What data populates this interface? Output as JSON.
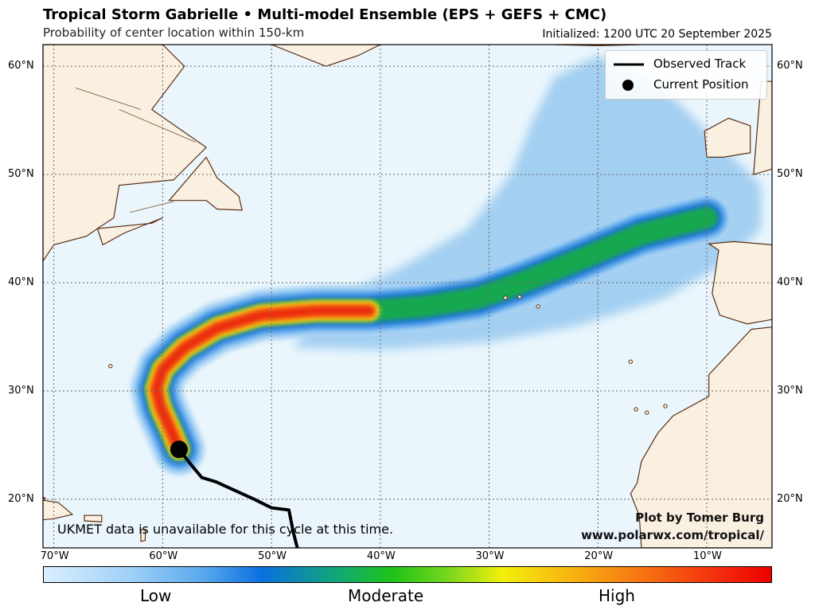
{
  "header": {
    "title": "Tropical Storm Gabrielle • Multi-model Ensemble (EPS + GEFS + CMC)",
    "subtitle": "Probability of center location within 150-km",
    "initialized": "Initialized: 1200 UTC 20 September 2025"
  },
  "map": {
    "lon_range": [
      -71,
      -4
    ],
    "lat_range": [
      15.5,
      62
    ],
    "lon_ticks": [
      {
        "value": -70,
        "label": "70°W"
      },
      {
        "value": -60,
        "label": "60°W"
      },
      {
        "value": -50,
        "label": "50°W"
      },
      {
        "value": -40,
        "label": "40°W"
      },
      {
        "value": -30,
        "label": "30°W"
      },
      {
        "value": -20,
        "label": "20°W"
      },
      {
        "value": -10,
        "label": "10°W"
      }
    ],
    "lat_ticks": [
      {
        "value": 20,
        "label": "20°N"
      },
      {
        "value": 30,
        "label": "30°N"
      },
      {
        "value": 40,
        "label": "40°N"
      },
      {
        "value": 50,
        "label": "50°N"
      },
      {
        "value": 60,
        "label": "60°N"
      }
    ],
    "colors": {
      "ocean": "#eaf6fc",
      "land": "#faf0e1",
      "coast": "#5a2e14",
      "grid": "#666666",
      "track": "#000000"
    }
  },
  "legend": {
    "observed_track": "Observed Track",
    "current_position": "Current Position",
    "placement": "top-right"
  },
  "observed_track": [
    [
      -47.5,
      15.0
    ],
    [
      -48.0,
      17.0
    ],
    [
      -48.4,
      19.0
    ],
    [
      -50.0,
      19.2
    ],
    [
      -51.6,
      20.0
    ],
    [
      -53.8,
      21.0
    ],
    [
      -55.1,
      21.6
    ],
    [
      -56.4,
      22.0
    ],
    [
      -57.4,
      23.2
    ],
    [
      -58.5,
      24.6
    ]
  ],
  "current_position": {
    "lon": -58.5,
    "lat": 24.6
  },
  "probability_swath": {
    "centerline": [
      [
        -58.5,
        24.6
      ],
      [
        -59.3,
        26.5
      ],
      [
        -60.2,
        28.5
      ],
      [
        -60.6,
        30.2
      ],
      [
        -60.0,
        32.0
      ],
      [
        -58.0,
        34.0
      ],
      [
        -55.0,
        35.8
      ],
      [
        -51.0,
        37.0
      ],
      [
        -46.0,
        37.4
      ],
      [
        -41.0,
        37.4
      ],
      [
        -36.0,
        37.8
      ],
      [
        -31.0,
        38.6
      ],
      [
        -27.0,
        40.0
      ],
      [
        -22.0,
        42.0
      ],
      [
        -16.0,
        44.5
      ],
      [
        -10.0,
        46.0
      ]
    ],
    "scale": [
      "Low",
      "Moderate",
      "High"
    ]
  },
  "annotations": {
    "note": "UKMET data is unavailable for this cycle at this time.",
    "credit_line1": "Plot by Tomer Burg",
    "credit_line2": "www.polarwx.com/tropical/"
  },
  "colorbar": {
    "low": "Low",
    "moderate": "Moderate",
    "high": "High"
  }
}
